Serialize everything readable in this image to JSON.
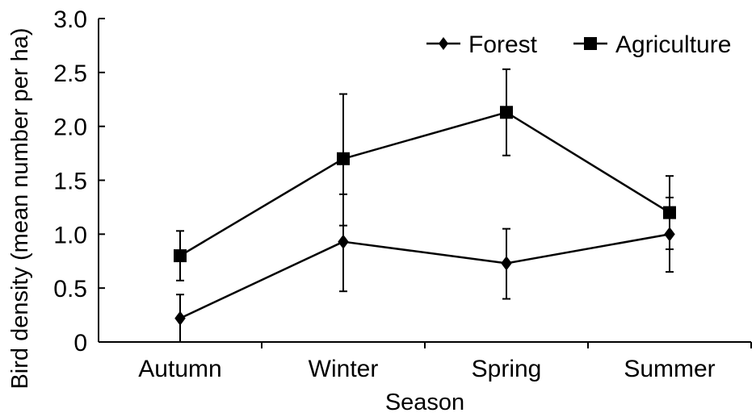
{
  "chart_data": {
    "type": "line",
    "categories": [
      "Autumn",
      "Winter",
      "Spring",
      "Summer"
    ],
    "series": [
      {
        "name": "Forest",
        "marker": "diamond",
        "values": [
          0.22,
          0.93,
          0.73,
          1.0
        ],
        "error_low": [
          0.0,
          0.47,
          0.4,
          0.65
        ],
        "error_high": [
          0.44,
          1.37,
          1.05,
          1.34
        ]
      },
      {
        "name": "Agriculture",
        "marker": "square",
        "values": [
          0.8,
          1.7,
          2.13,
          1.2
        ],
        "error_low": [
          0.57,
          1.08,
          1.73,
          0.86
        ],
        "error_high": [
          1.03,
          2.3,
          2.53,
          1.54
        ]
      }
    ],
    "xlabel": "Season",
    "ylabel": "Bird density (mean number per ha)",
    "ylim": [
      0,
      3.0
    ],
    "yticks": [
      "0",
      "0.5",
      "1.0",
      "1.5",
      "2.0",
      "2.5",
      "3.0"
    ],
    "legend_position": "top-right",
    "grid": false,
    "line_color": "#000000"
  }
}
